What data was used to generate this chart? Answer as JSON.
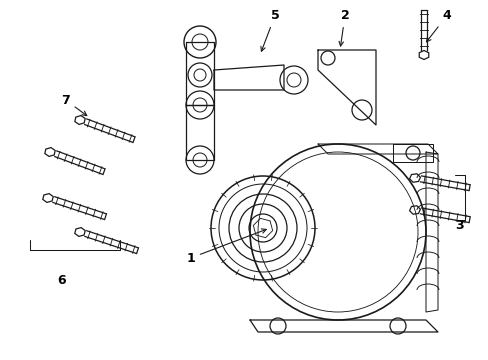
{
  "bg": "#ffffff",
  "lc": "#1a1a1a",
  "lw": 0.9,
  "fig_w": 4.89,
  "fig_h": 3.6,
  "dpi": 100
}
